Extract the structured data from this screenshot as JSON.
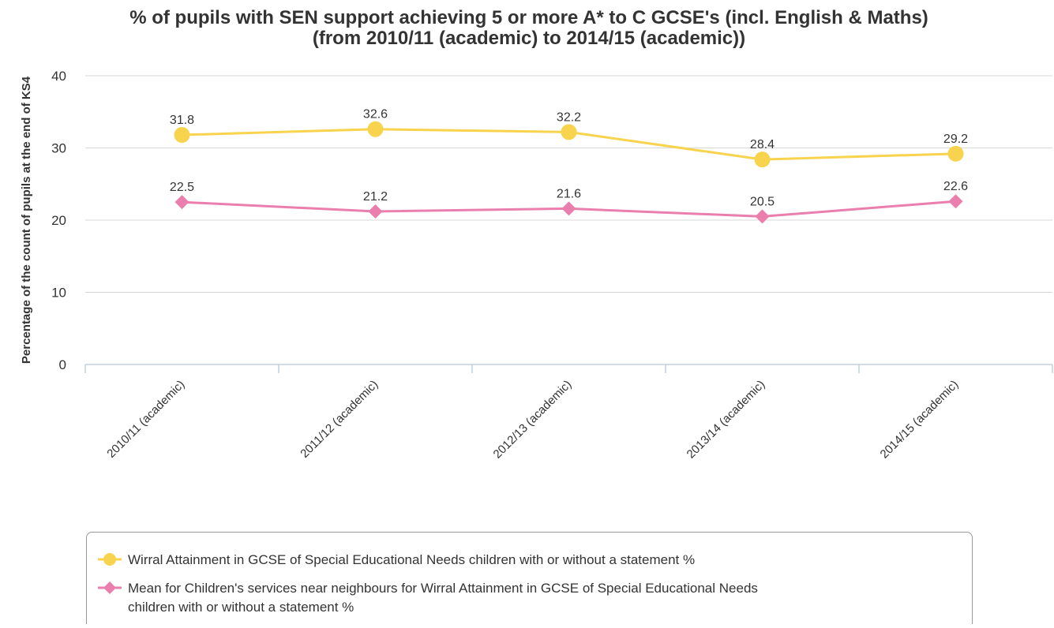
{
  "chart_data": {
    "type": "line",
    "title_lines": [
      "% of pupils with SEN support achieving 5 or more A* to C GCSE's (incl. English & Maths)",
      "(from 2010/11 (academic) to 2014/15 (academic))"
    ],
    "ylabel": "Percentage of the count of pupils at the end of KS4",
    "xlabel": "",
    "categories": [
      "2010/11 (academic)",
      "2011/12 (academic)",
      "2012/13 (academic)",
      "2013/14 (academic)",
      "2014/15 (academic)"
    ],
    "ylim": [
      0,
      40
    ],
    "yticks": [
      0,
      10,
      20,
      30,
      40
    ],
    "grid": true,
    "legend_position": "bottom",
    "series": [
      {
        "name_lines": [
          "Wirral Attainment in GCSE of Special Educational Needs children with or without a statement %"
        ],
        "values": [
          31.8,
          32.6,
          32.2,
          28.4,
          29.2
        ],
        "labels": [
          "31.8",
          "32.6",
          "32.2",
          "28.4",
          "29.2"
        ],
        "color": "#f8d34e",
        "marker": "circle"
      },
      {
        "name_lines": [
          "Mean for Children's services near neighbours for Wirral Attainment in GCSE of Special Educational Needs",
          "children with or without a statement %"
        ],
        "values": [
          22.5,
          21.2,
          21.6,
          20.5,
          22.6
        ],
        "labels": [
          "22.5",
          "21.2",
          "21.6",
          "20.5",
          "22.6"
        ],
        "color": "#ea7fae",
        "marker": "diamond"
      }
    ]
  },
  "colors": {
    "grid": "#d8d8d8",
    "axis": "#c0d0e0",
    "legend_border": "#999999",
    "text": "#333333"
  }
}
